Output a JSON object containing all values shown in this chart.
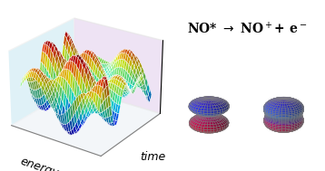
{
  "title_text": "NO* → NO⁺+ e⁻",
  "energy_label": "energy",
  "time_label": "time",
  "background_color": "#ffffff",
  "left_panel_bg": "#e8f4f8",
  "right_panel_bg": "#f5e8f0",
  "fig_width": 3.58,
  "fig_height": 1.89,
  "dpi": 100
}
